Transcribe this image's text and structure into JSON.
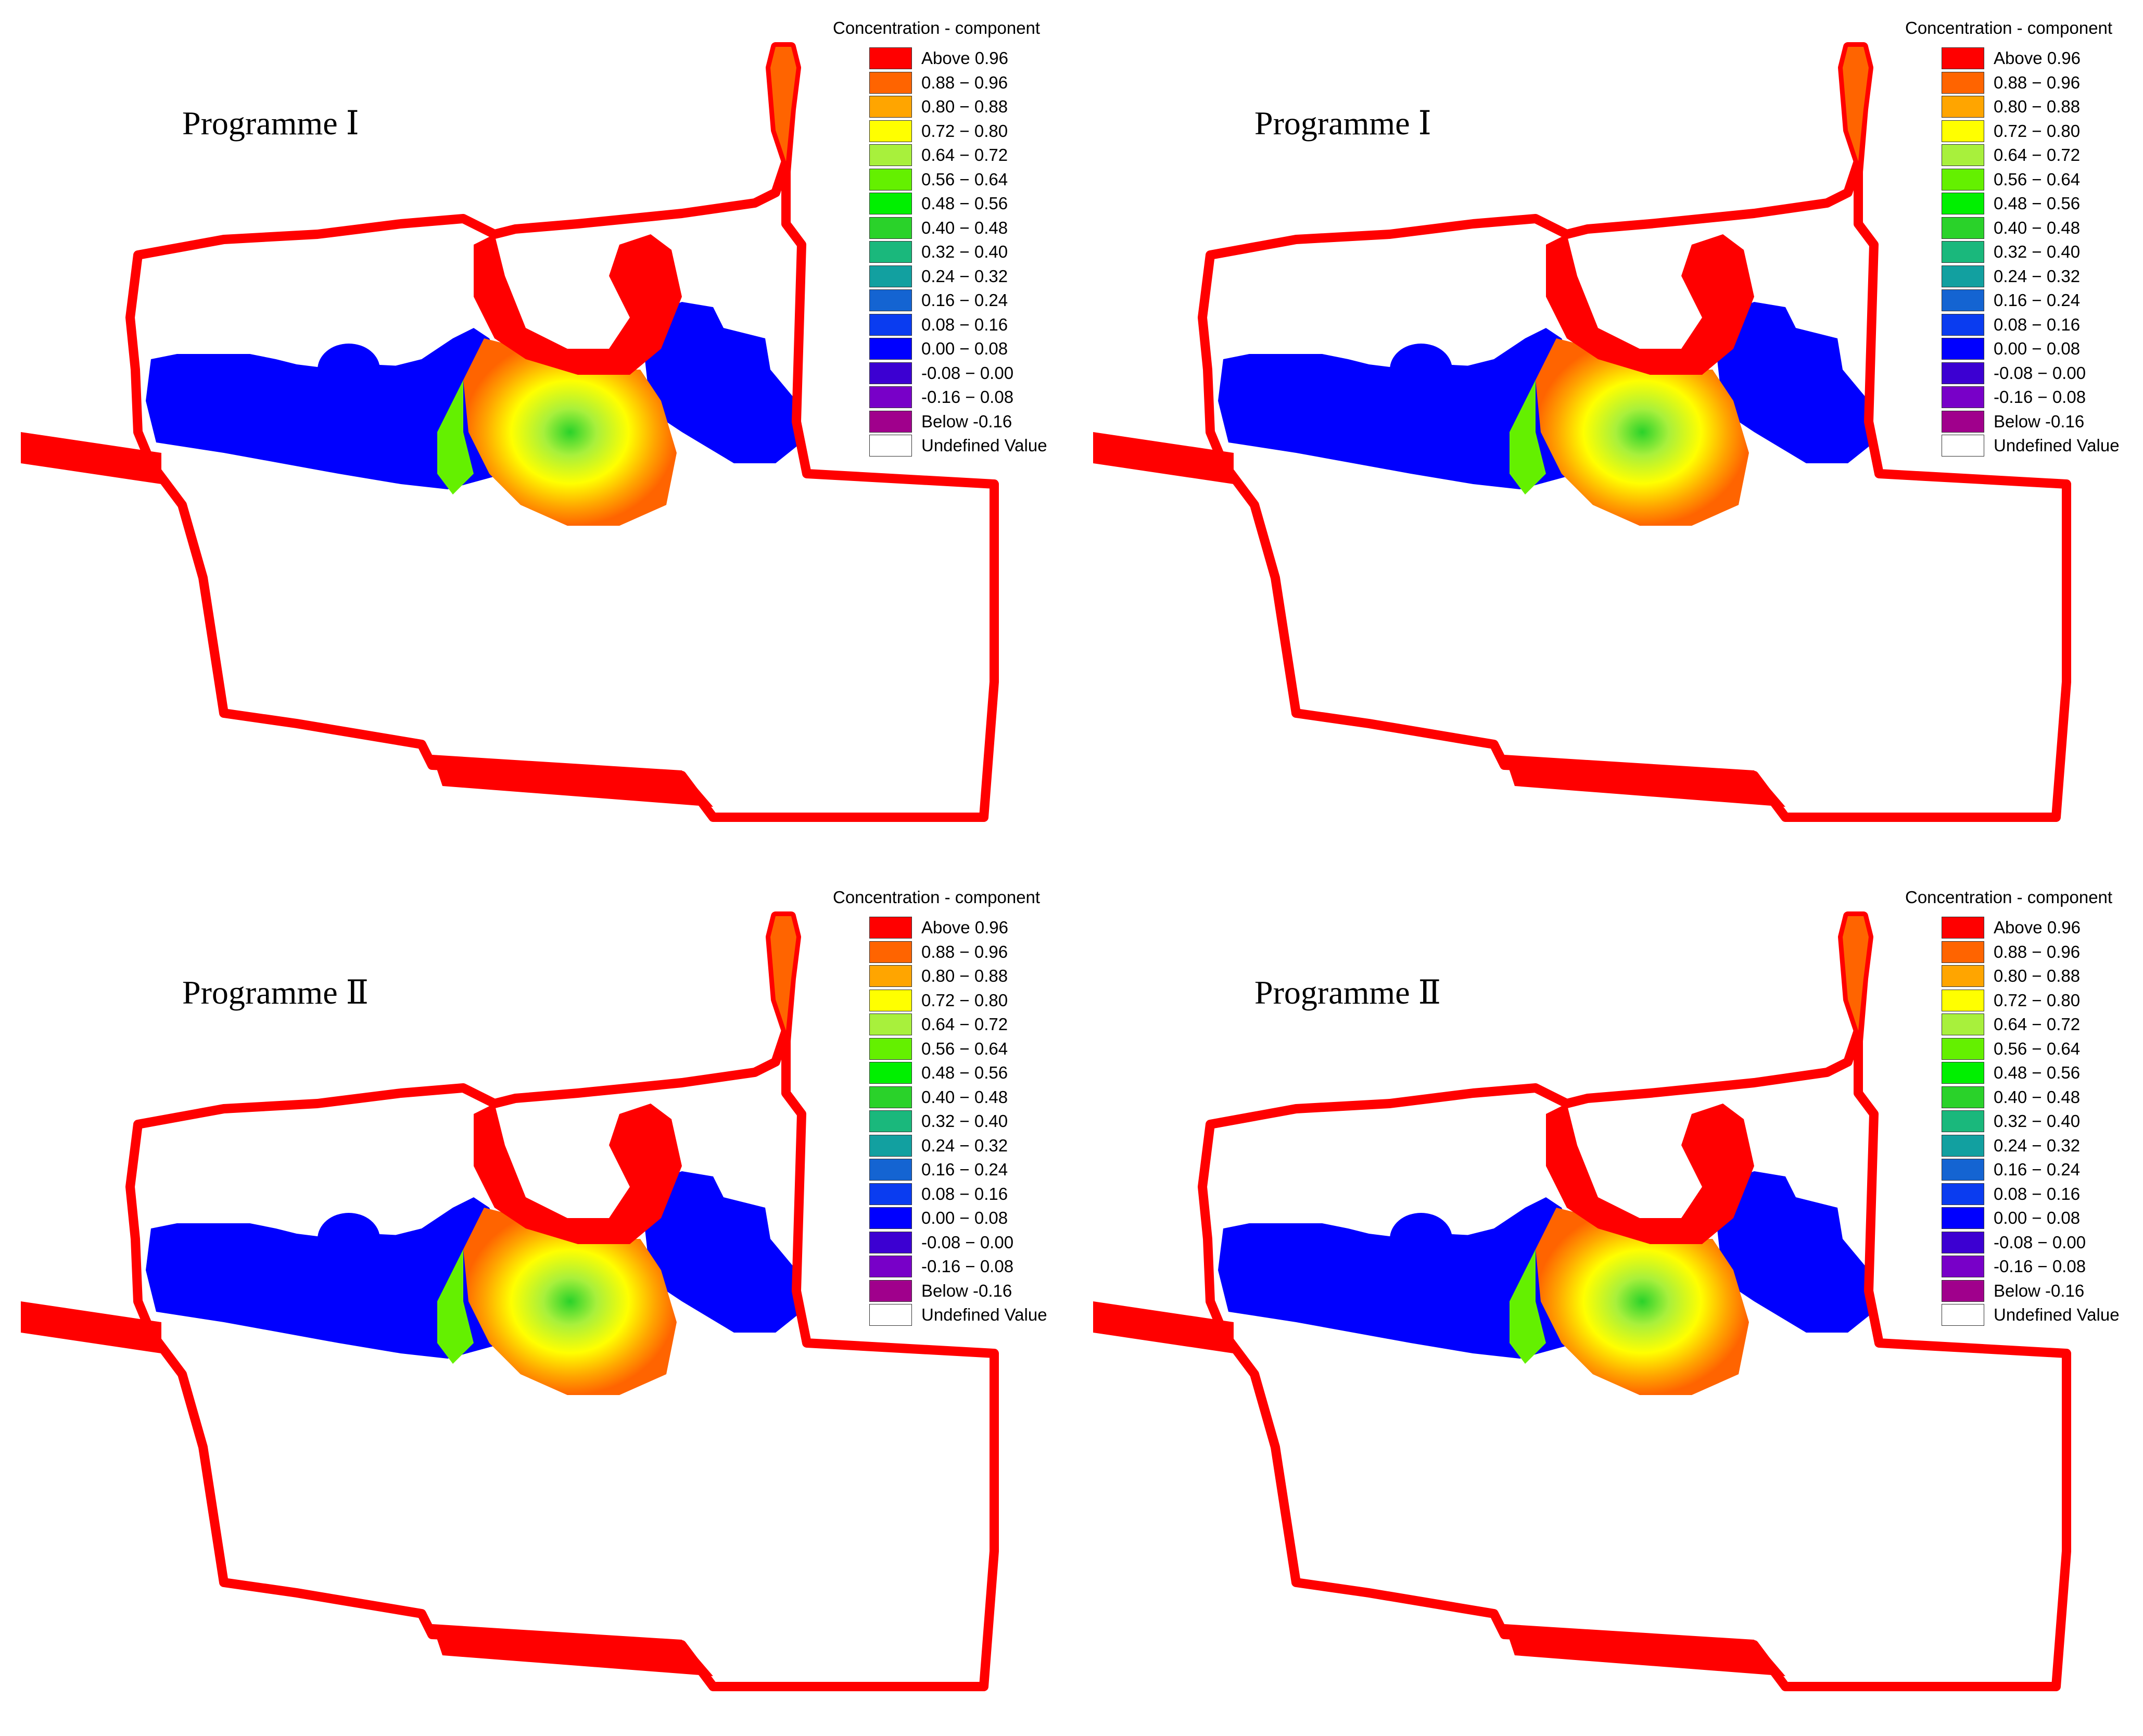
{
  "panels": [
    {
      "title": "Programme Ⅰ"
    },
    {
      "title": "Programme Ⅰ"
    },
    {
      "title": "Programme Ⅱ"
    },
    {
      "title": "Programme Ⅱ"
    }
  ],
  "legend": {
    "title": "Concentration - component",
    "items": [
      {
        "label": "Above  0.96",
        "color": "#ff0000"
      },
      {
        "label": "0.88 − 0.96",
        "color": "#ff6400"
      },
      {
        "label": "0.80 − 0.88",
        "color": "#ffa500"
      },
      {
        "label": "0.72 − 0.80",
        "color": "#ffff00"
      },
      {
        "label": "0.64 − 0.72",
        "color": "#a8f03c"
      },
      {
        "label": "0.56 − 0.64",
        "color": "#64f000"
      },
      {
        "label": "0.48 − 0.56",
        "color": "#00f000"
      },
      {
        "label": "0.40 − 0.48",
        "color": "#2ad22a"
      },
      {
        "label": "0.32 − 0.40",
        "color": "#1ab87c"
      },
      {
        "label": "0.24 − 0.32",
        "color": "#12a0a0"
      },
      {
        "label": "0.16 − 0.24",
        "color": "#1464d2"
      },
      {
        "label": "0.08 − 0.16",
        "color": "#0a3cf0"
      },
      {
        "label": "0.00 − 0.08",
        "color": "#0000ff"
      },
      {
        "label": "-0.08 − 0.00",
        "color": "#3c00d2"
      },
      {
        "label": "-0.16 − 0.08",
        "color": "#7800c8"
      },
      {
        "label": "Below -0.16",
        "color": "#a0008c"
      },
      {
        "label": "Undefined Value",
        "color": "#ffffff"
      }
    ]
  }
}
